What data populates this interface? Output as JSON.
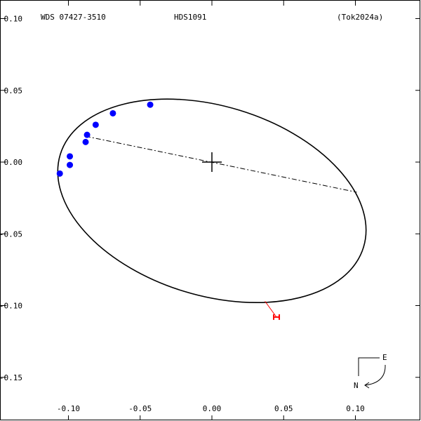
{
  "header": {
    "left": "WDS 07427-3510",
    "center": "HDS1091",
    "right": "(Tok2024a)"
  },
  "compass": {
    "east": "E",
    "north": "N"
  },
  "colors": {
    "orbit": "#000000",
    "measures": "#0000ff",
    "predicted": "#ff0000",
    "line_of_nodes": "#000000"
  },
  "chart_data": {
    "type": "scatter",
    "title": "",
    "xlabel": "",
    "ylabel": "",
    "xlim": [
      -0.145,
      0.145
    ],
    "ylim": [
      -0.175,
      0.11
    ],
    "x_ticks": [
      -0.1,
      -0.05,
      0.0,
      0.05,
      0.1
    ],
    "x_tick_labels": [
      "-0.10",
      "-0.05",
      "0.00",
      "0.05",
      "0.10"
    ],
    "y_ticks": [
      0.1,
      0.05,
      0.0,
      -0.05,
      -0.1,
      -0.15
    ],
    "y_tick_labels": [
      "0.10",
      "0.05",
      "0.00",
      "-0.05",
      "-0.10",
      "-0.15"
    ],
    "grid": false,
    "primary_star": [
      0.0,
      0.0
    ],
    "orbit_ellipse": {
      "center": [
        0.0,
        -0.027
      ],
      "semi_major": 0.1105,
      "semi_minor": 0.066,
      "rotation_deg": -17.0
    },
    "line_of_nodes": {
      "from": [
        -0.088,
        0.018
      ],
      "to": [
        0.101,
        -0.021
      ]
    },
    "observations": [
      {
        "x": -0.043,
        "y": 0.04
      },
      {
        "x": -0.069,
        "y": 0.034
      },
      {
        "x": -0.081,
        "y": 0.026
      },
      {
        "x": -0.087,
        "y": 0.019
      },
      {
        "x": -0.088,
        "y": 0.014
      },
      {
        "x": -0.099,
        "y": 0.004
      },
      {
        "x": -0.099,
        "y": -0.002
      },
      {
        "x": -0.106,
        "y": -0.008
      }
    ],
    "predicted_position": {
      "point": [
        0.045,
        -0.108
      ],
      "from_orbit": [
        0.037,
        -0.097
      ]
    }
  }
}
